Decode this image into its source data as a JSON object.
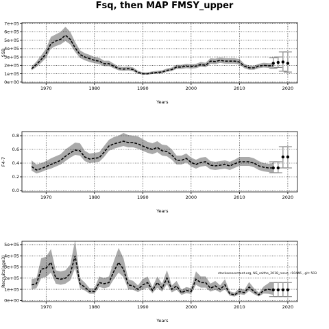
{
  "title": "Fsq, then MAP FMSY_upper",
  "annotation": "stockassessment.org, NS_saithe_2018_rerun, r10446 , git: 503",
  "chart_data": [
    {
      "type": "line",
      "name": "SSB",
      "xlabel": "Years",
      "ylabel": "SSB",
      "xlim": [
        1965,
        2022
      ],
      "ylim": [
        -10000,
        710000
      ],
      "xticks": [
        1970,
        1980,
        1990,
        2000,
        2010,
        2020
      ],
      "yticks": [
        0,
        100000,
        200000,
        300000,
        400000,
        500000,
        600000,
        700000
      ],
      "ytick_labels": [
        "0e+00",
        "1e+05",
        "2e+05",
        "3e+05",
        "4e+05",
        "5e+05",
        "6e+05",
        "7e+05"
      ],
      "grid": true,
      "x": [
        1967,
        1968,
        1969,
        1970,
        1971,
        1972,
        1973,
        1974,
        1975,
        1976,
        1977,
        1978,
        1979,
        1980,
        1981,
        1982,
        1983,
        1984,
        1985,
        1986,
        1987,
        1988,
        1989,
        1990,
        1991,
        1992,
        1993,
        1994,
        1995,
        1996,
        1997,
        1998,
        1999,
        2000,
        2001,
        2002,
        2003,
        2004,
        2005,
        2006,
        2007,
        2008,
        2009,
        2010,
        2011,
        2012,
        2013,
        2014,
        2015,
        2016,
        2017
      ],
      "estimate": [
        160000,
        210000,
        270000,
        340000,
        460000,
        490000,
        510000,
        560000,
        510000,
        410000,
        330000,
        300000,
        280000,
        260000,
        250000,
        220000,
        220000,
        190000,
        160000,
        155000,
        160000,
        150000,
        115000,
        100000,
        100000,
        110000,
        115000,
        120000,
        140000,
        150000,
        180000,
        180000,
        190000,
        185000,
        190000,
        210000,
        200000,
        250000,
        245000,
        260000,
        250000,
        250000,
        250000,
        240000,
        190000,
        170000,
        170000,
        190000,
        200000,
        195000,
        195000
      ],
      "lower": [
        140000,
        180000,
        230000,
        290000,
        400000,
        430000,
        450000,
        490000,
        450000,
        360000,
        290000,
        260000,
        240000,
        225000,
        215000,
        190000,
        190000,
        165000,
        140000,
        135000,
        138000,
        128000,
        100000,
        88000,
        88000,
        96000,
        100000,
        105000,
        122000,
        132000,
        158000,
        158000,
        166000,
        162000,
        166000,
        184000,
        176000,
        220000,
        215000,
        228000,
        220000,
        220000,
        220000,
        210000,
        166000,
        148000,
        148000,
        166000,
        174000,
        170000,
        170000
      ],
      "upper": [
        185000,
        245000,
        320000,
        400000,
        540000,
        570000,
        600000,
        660000,
        600000,
        480000,
        380000,
        345000,
        325000,
        300000,
        290000,
        255000,
        255000,
        220000,
        185000,
        180000,
        185000,
        175000,
        135000,
        116000,
        116000,
        128000,
        134000,
        140000,
        162000,
        174000,
        206000,
        206000,
        218000,
        212000,
        218000,
        240000,
        230000,
        285000,
        280000,
        295000,
        285000,
        285000,
        285000,
        275000,
        218000,
        196000,
        196000,
        218000,
        230000,
        225000,
        225000
      ],
      "forecast": {
        "x": [
          2017,
          2018,
          2019,
          2020
        ],
        "estimate": [
          225000,
          235000,
          240000,
          225000
        ],
        "lower": [
          165000,
          175000,
          130000,
          120000
        ],
        "upper": [
          290000,
          300000,
          360000,
          360000
        ]
      }
    },
    {
      "type": "line",
      "name": "F",
      "xlabel": "Years",
      "ylabel": "F4-7",
      "xlim": [
        1965,
        2022
      ],
      "ylim": [
        -0.02,
        0.86
      ],
      "xticks": [
        1970,
        1980,
        1990,
        2000,
        2010,
        2020
      ],
      "yticks": [
        0.0,
        0.2,
        0.4,
        0.6,
        0.8
      ],
      "ytick_labels": [
        "0.0",
        "0.2",
        "0.4",
        "0.6",
        "0.8"
      ],
      "grid": true,
      "x": [
        1967,
        1968,
        1969,
        1970,
        1971,
        1972,
        1973,
        1974,
        1975,
        1976,
        1977,
        1978,
        1979,
        1980,
        1981,
        1982,
        1983,
        1984,
        1985,
        1986,
        1987,
        1988,
        1989,
        1990,
        1991,
        1992,
        1993,
        1994,
        1995,
        1996,
        1997,
        1998,
        1999,
        2000,
        2001,
        2002,
        2003,
        2004,
        2005,
        2006,
        2007,
        2008,
        2009,
        2010,
        2011,
        2012,
        2013,
        2014,
        2015,
        2016,
        2017
      ],
      "estimate": [
        0.35,
        0.3,
        0.32,
        0.35,
        0.38,
        0.41,
        0.44,
        0.5,
        0.55,
        0.59,
        0.58,
        0.49,
        0.46,
        0.47,
        0.48,
        0.56,
        0.65,
        0.68,
        0.7,
        0.72,
        0.7,
        0.7,
        0.68,
        0.65,
        0.62,
        0.6,
        0.63,
        0.58,
        0.57,
        0.52,
        0.44,
        0.44,
        0.47,
        0.41,
        0.38,
        0.41,
        0.42,
        0.37,
        0.36,
        0.37,
        0.38,
        0.36,
        0.39,
        0.42,
        0.42,
        0.42,
        0.4,
        0.36,
        0.34,
        0.33,
        0.33
      ],
      "lower": [
        0.29,
        0.25,
        0.27,
        0.3,
        0.32,
        0.35,
        0.38,
        0.43,
        0.48,
        0.52,
        0.51,
        0.43,
        0.4,
        0.41,
        0.42,
        0.49,
        0.58,
        0.61,
        0.63,
        0.65,
        0.63,
        0.63,
        0.61,
        0.58,
        0.55,
        0.53,
        0.56,
        0.51,
        0.5,
        0.45,
        0.38,
        0.38,
        0.41,
        0.35,
        0.32,
        0.35,
        0.36,
        0.31,
        0.3,
        0.31,
        0.32,
        0.3,
        0.33,
        0.36,
        0.36,
        0.36,
        0.34,
        0.3,
        0.28,
        0.27,
        0.26
      ],
      "upper": [
        0.44,
        0.38,
        0.4,
        0.43,
        0.47,
        0.5,
        0.53,
        0.6,
        0.65,
        0.7,
        0.69,
        0.58,
        0.54,
        0.55,
        0.56,
        0.65,
        0.74,
        0.78,
        0.8,
        0.84,
        0.81,
        0.8,
        0.79,
        0.75,
        0.71,
        0.69,
        0.72,
        0.67,
        0.66,
        0.6,
        0.51,
        0.51,
        0.54,
        0.48,
        0.45,
        0.48,
        0.49,
        0.43,
        0.42,
        0.43,
        0.44,
        0.42,
        0.45,
        0.49,
        0.49,
        0.49,
        0.47,
        0.43,
        0.4,
        0.39,
        0.4
      ],
      "forecast": {
        "x": [
          2017,
          2018,
          2019,
          2020
        ],
        "estimate": [
          0.33,
          0.33,
          0.49,
          0.49
        ],
        "lower": [
          0.26,
          0.26,
          0.33,
          0.33
        ],
        "upper": [
          0.42,
          0.42,
          0.64,
          0.64
        ]
      }
    },
    {
      "type": "line",
      "name": "Recruitment",
      "xlabel": "Years",
      "ylabel": "Recruits(age3)",
      "xlim": [
        1965,
        2022
      ],
      "ylim": [
        -10000,
        530000
      ],
      "xticks": [
        1970,
        1980,
        1990,
        2000,
        2010,
        2020
      ],
      "yticks": [
        0,
        100000,
        200000,
        300000,
        400000,
        500000
      ],
      "ytick_labels": [
        "0e+00",
        "1e+05",
        "2e+05",
        "3e+05",
        "4e+05",
        "5e+05"
      ],
      "grid": true,
      "x": [
        1967,
        1968,
        1969,
        1970,
        1971,
        1972,
        1973,
        1974,
        1975,
        1976,
        1977,
        1978,
        1979,
        1980,
        1981,
        1982,
        1983,
        1984,
        1985,
        1986,
        1987,
        1988,
        1989,
        1990,
        1991,
        1992,
        1993,
        1994,
        1995,
        1996,
        1997,
        1998,
        1999,
        2000,
        2001,
        2002,
        2003,
        2004,
        2005,
        2006,
        2007,
        2008,
        2009,
        2010,
        2011,
        2012,
        2013,
        2014,
        2015,
        2016,
        2017
      ],
      "estimate": [
        140000,
        150000,
        280000,
        290000,
        340000,
        200000,
        190000,
        200000,
        240000,
        400000,
        150000,
        120000,
        80000,
        80000,
        160000,
        150000,
        160000,
        260000,
        340000,
        280000,
        140000,
        130000,
        100000,
        140000,
        160000,
        90000,
        160000,
        110000,
        200000,
        100000,
        130000,
        70000,
        90000,
        80000,
        190000,
        160000,
        160000,
        110000,
        130000,
        100000,
        140000,
        60000,
        50000,
        80000,
        70000,
        120000,
        80000,
        50000,
        90000,
        100000,
        90000
      ],
      "lower": [
        100000,
        110000,
        200000,
        210000,
        250000,
        150000,
        140000,
        150000,
        180000,
        290000,
        110000,
        90000,
        60000,
        60000,
        120000,
        110000,
        120000,
        190000,
        250000,
        210000,
        100000,
        95000,
        75000,
        100000,
        115000,
        65000,
        115000,
        80000,
        145000,
        72000,
        95000,
        50000,
        65000,
        58000,
        140000,
        115000,
        115000,
        80000,
        95000,
        72000,
        100000,
        42000,
        35000,
        57000,
        50000,
        86000,
        57000,
        36000,
        62000,
        60000,
        50000
      ],
      "upper": [
        190000,
        200000,
        380000,
        390000,
        460000,
        270000,
        260000,
        270000,
        320000,
        540000,
        200000,
        160000,
        110000,
        110000,
        215000,
        200000,
        215000,
        350000,
        470000,
        380000,
        190000,
        175000,
        135000,
        190000,
        215000,
        120000,
        215000,
        150000,
        270000,
        135000,
        175000,
        95000,
        120000,
        110000,
        260000,
        215000,
        215000,
        150000,
        175000,
        135000,
        190000,
        82000,
        70000,
        110000,
        95000,
        165000,
        110000,
        70000,
        125000,
        155000,
        160000
      ],
      "forecast": {
        "x": [
          2017,
          2018,
          2019,
          2020
        ],
        "estimate": [
          95000,
          95000,
          95000,
          95000
        ],
        "lower": [
          35000,
          35000,
          35000,
          35000
        ],
        "upper": [
          160000,
          160000,
          160000,
          160000
        ]
      }
    }
  ]
}
